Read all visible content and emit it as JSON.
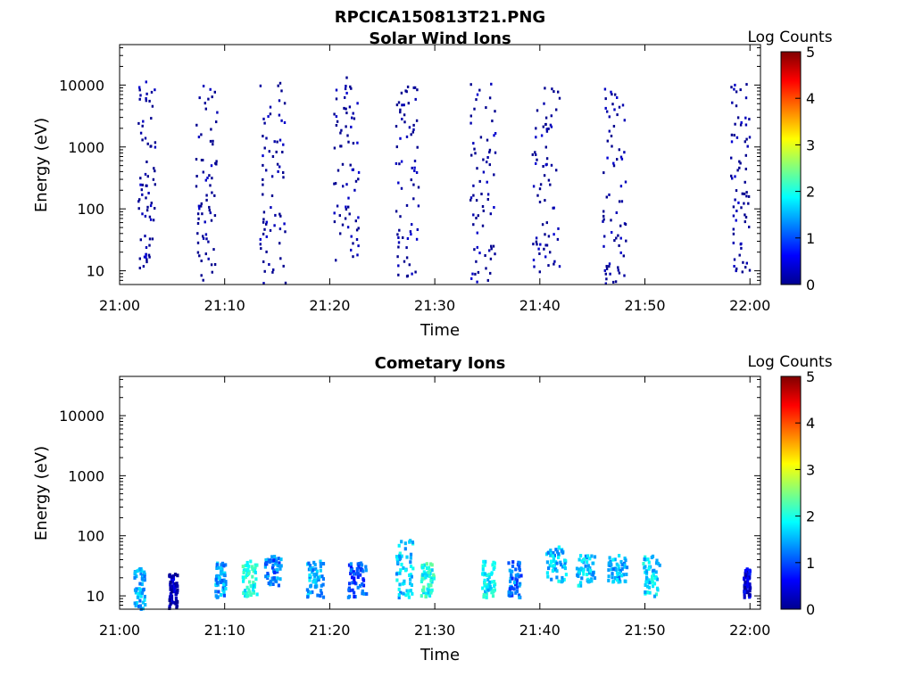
{
  "figure_title": "RPCICA150813T21.PNG",
  "colors": {
    "colormap": [
      "#00008f",
      "#0000ff",
      "#00ffff",
      "#ffff00",
      "#ff0000",
      "#800000"
    ]
  },
  "chart_data": [
    {
      "type": "heatmap",
      "title": "Solar Wind Ions",
      "xlabel": "Time",
      "ylabel": "Energy (eV)",
      "y_scale": "log",
      "xlim": [
        "21:00",
        "22:01"
      ],
      "ylim": [
        6,
        45000
      ],
      "x_ticks": [
        "21:00",
        "21:10",
        "21:20",
        "21:30",
        "21:40",
        "21:50",
        "22:00"
      ],
      "y_ticks": [
        "10",
        "100",
        "1000",
        "10000"
      ],
      "colorbar": {
        "label": "Log Counts",
        "ticks": [
          "0",
          "1",
          "2",
          "3",
          "4",
          "5"
        ],
        "range": [
          0,
          5
        ]
      },
      "clusters": [
        {
          "center_min": 2.5,
          "width_min": 1.6,
          "energy_range_ev": [
            10,
            15000
          ],
          "log_counts": 0
        },
        {
          "center_min": 8.2,
          "width_min": 2.0,
          "energy_range_ev": [
            6,
            12000
          ],
          "log_counts": 0
        },
        {
          "center_min": 14.5,
          "width_min": 2.4,
          "energy_range_ev": [
            6,
            12000
          ],
          "log_counts": 0
        },
        {
          "center_min": 21.5,
          "width_min": 2.4,
          "energy_range_ev": [
            15,
            15000
          ],
          "log_counts": 0
        },
        {
          "center_min": 27.3,
          "width_min": 2.2,
          "energy_range_ev": [
            8,
            12000
          ],
          "log_counts": 0
        },
        {
          "center_min": 34.5,
          "width_min": 2.4,
          "energy_range_ev": [
            6,
            12000
          ],
          "log_counts": 0
        },
        {
          "center_min": 40.5,
          "width_min": 2.6,
          "energy_range_ev": [
            10,
            10000
          ],
          "log_counts": 0
        },
        {
          "center_min": 47.0,
          "width_min": 2.2,
          "energy_range_ev": [
            6,
            12000
          ],
          "log_counts": 0
        },
        {
          "center_min": 59.0,
          "width_min": 1.8,
          "energy_range_ev": [
            10,
            12000
          ],
          "log_counts": 0
        }
      ]
    },
    {
      "type": "heatmap",
      "title": "Cometary Ions",
      "xlabel": "Time",
      "ylabel": "Energy (eV)",
      "y_scale": "log",
      "xlim": [
        "21:00",
        "22:01"
      ],
      "ylim": [
        6,
        45000
      ],
      "x_ticks": [
        "21:00",
        "21:10",
        "21:20",
        "21:30",
        "21:40",
        "21:50",
        "22:00"
      ],
      "y_ticks": [
        "10",
        "100",
        "1000",
        "10000"
      ],
      "colorbar": {
        "label": "Log Counts",
        "ticks": [
          "0",
          "1",
          "2",
          "3",
          "4",
          "5"
        ],
        "range": [
          0,
          5
        ]
      },
      "clusters": [
        {
          "center_min": 1.8,
          "width_min": 1.0,
          "energy_range_ev": [
            6,
            30
          ],
          "log_counts": 1.5
        },
        {
          "center_min": 5.0,
          "width_min": 0.8,
          "energy_range_ev": [
            6,
            25
          ],
          "log_counts": 0.2
        },
        {
          "center_min": 9.5,
          "width_min": 1.0,
          "energy_range_ev": [
            10,
            40
          ],
          "log_counts": 1.4
        },
        {
          "center_min": 12.3,
          "width_min": 1.4,
          "energy_range_ev": [
            10,
            40
          ],
          "log_counts": 2.0
        },
        {
          "center_min": 14.5,
          "width_min": 1.6,
          "energy_range_ev": [
            15,
            50
          ],
          "log_counts": 1.2
        },
        {
          "center_min": 18.5,
          "width_min": 1.6,
          "energy_range_ev": [
            10,
            40
          ],
          "log_counts": 1.5
        },
        {
          "center_min": 22.5,
          "width_min": 1.8,
          "energy_range_ev": [
            10,
            40
          ],
          "log_counts": 1.0
        },
        {
          "center_min": 27.0,
          "width_min": 1.6,
          "energy_range_ev": [
            10,
            90
          ],
          "log_counts": 1.6
        },
        {
          "center_min": 29.2,
          "width_min": 1.2,
          "energy_range_ev": [
            10,
            40
          ],
          "log_counts": 2.0
        },
        {
          "center_min": 35.0,
          "width_min": 1.2,
          "energy_range_ev": [
            10,
            40
          ],
          "log_counts": 1.8
        },
        {
          "center_min": 37.5,
          "width_min": 1.2,
          "energy_range_ev": [
            10,
            40
          ],
          "log_counts": 1.2
        },
        {
          "center_min": 41.5,
          "width_min": 2.0,
          "energy_range_ev": [
            18,
            70
          ],
          "log_counts": 1.6
        },
        {
          "center_min": 44.3,
          "width_min": 1.8,
          "energy_range_ev": [
            15,
            50
          ],
          "log_counts": 1.6
        },
        {
          "center_min": 47.3,
          "width_min": 1.8,
          "energy_range_ev": [
            18,
            50
          ],
          "log_counts": 1.5
        },
        {
          "center_min": 50.5,
          "width_min": 1.6,
          "energy_range_ev": [
            10,
            50
          ],
          "log_counts": 1.7
        },
        {
          "center_min": 59.6,
          "width_min": 0.6,
          "energy_range_ev": [
            10,
            30
          ],
          "log_counts": 0.4
        }
      ]
    }
  ]
}
